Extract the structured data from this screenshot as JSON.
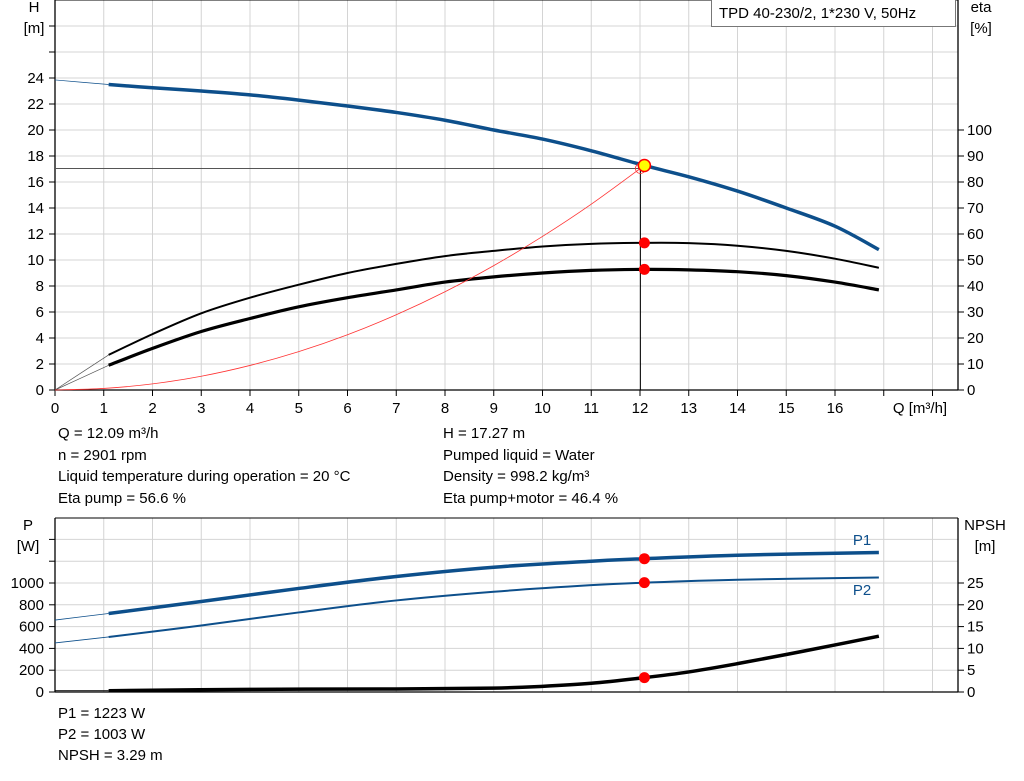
{
  "title": "TPD 40-230/2, 1*230 V, 50Hz",
  "colors": {
    "head": "#0d4f8b",
    "power": "#0d4f8b",
    "eta": "#000000",
    "system": "#ff3333",
    "point": "#ff0000",
    "duty_point": "#ffff00",
    "grid": "#d4d4d4"
  },
  "info_left": [
    "Q = 12.09 m³/h",
    "n = 2901 rpm",
    "Liquid temperature during operation = 20 °C",
    "Eta pump = 56.6 %"
  ],
  "info_right": [
    "H = 17.27 m",
    "Pumped liquid = Water",
    "Density = 998.2 kg/m³",
    "Eta pump+motor = 46.4 %"
  ],
  "info_bottom": [
    "P1 = 1223 W",
    "P2 = 1003 W",
    "NPSH = 3.29 m"
  ],
  "chart_data": [
    {
      "type": "line",
      "xlabel": "Q [m³/h]",
      "ylabel_left": {
        "name": "H",
        "unit": "[m]"
      },
      "ylabel_right": {
        "name": "eta",
        "unit": "[%]"
      },
      "xlim": [
        0,
        18.5
      ],
      "ylim_left": [
        0,
        30
      ],
      "ylim_right": [
        0,
        115.4
      ],
      "x_ticks": [
        0,
        1,
        2,
        3,
        4,
        5,
        6,
        7,
        8,
        9,
        10,
        11,
        12,
        13,
        14,
        15,
        16
      ],
      "y_left_ticks": [
        0,
        2,
        4,
        6,
        8,
        10,
        12,
        14,
        16,
        18,
        20,
        22,
        24
      ],
      "y_right_ticks": [
        0,
        10,
        20,
        30,
        40,
        50,
        60,
        70,
        80,
        90,
        100
      ],
      "grid": true,
      "duty_point": {
        "Q": 12.09,
        "H": 17.27,
        "eta_pump": 56.6,
        "eta_pump_motor": 46.4
      },
      "series": [
        {
          "key": "H",
          "axis": "left",
          "x": [
            1.1,
            2,
            3,
            4,
            5,
            6,
            7,
            8,
            9,
            10,
            11,
            12.09,
            13,
            14,
            15,
            16,
            16.9
          ],
          "y": [
            23.5,
            23.25,
            23.0,
            22.7,
            22.3,
            21.85,
            21.35,
            20.75,
            20.0,
            19.3,
            18.4,
            17.27,
            16.4,
            15.3,
            14.0,
            12.6,
            10.8
          ],
          "extrapolation": {
            "x": [
              0,
              1.1
            ],
            "y": [
              23.85,
              23.5
            ]
          }
        },
        {
          "key": "eta_pump",
          "axis": "right",
          "x": [
            1.1,
            2,
            3,
            4,
            5,
            6,
            7,
            8,
            9,
            10,
            11,
            12.09,
            13,
            14,
            15,
            16,
            16.9
          ],
          "y": [
            13.5,
            21.5,
            29.5,
            35.5,
            40.5,
            45,
            48.5,
            51.5,
            53.5,
            55.2,
            56.2,
            56.6,
            56.5,
            55.5,
            53.5,
            50.5,
            47
          ],
          "extrapolation": {
            "x": [
              0,
              1.1
            ],
            "y": [
              0,
              13.5
            ]
          }
        },
        {
          "key": "eta_pump_motor",
          "axis": "right",
          "x": [
            1.1,
            2,
            3,
            4,
            5,
            6,
            7,
            8,
            9,
            10,
            11,
            12.09,
            13,
            14,
            15,
            16,
            16.9
          ],
          "y": [
            9.5,
            16,
            22.5,
            27.5,
            32,
            35.5,
            38.5,
            41.5,
            43.5,
            45,
            46,
            46.4,
            46.2,
            45.5,
            44,
            41.5,
            38.5
          ],
          "extrapolation": {
            "x": [
              0,
              1.1
            ],
            "y": [
              0,
              9.5
            ]
          }
        },
        {
          "key": "system",
          "axis": "left",
          "x": [
            0,
            1,
            2,
            3,
            4,
            5,
            6,
            7,
            8,
            9,
            10,
            11,
            12.09
          ],
          "y": [
            0,
            0.12,
            0.47,
            1.06,
            1.89,
            2.95,
            4.25,
            5.79,
            7.56,
            9.57,
            11.81,
            14.29,
            17.27
          ]
        }
      ]
    },
    {
      "type": "line",
      "ylabel_left": {
        "name": "P",
        "unit": "[W]"
      },
      "ylabel_right": {
        "name": "NPSH",
        "unit": "[m]"
      },
      "xlim": [
        0,
        18.5
      ],
      "ylim_left": [
        0,
        1600
      ],
      "ylim_right": [
        0,
        40
      ],
      "y_left_ticks": [
        0,
        200,
        400,
        600,
        800,
        1000
      ],
      "y_right_ticks": [
        0,
        5,
        10,
        15,
        20,
        25
      ],
      "grid": true,
      "series": [
        {
          "key": "P1",
          "name": "P1",
          "axis": "left",
          "x": [
            1.1,
            3,
            5,
            7,
            9,
            11,
            12.09,
            14,
            16.9
          ],
          "y": [
            720,
            830,
            950,
            1060,
            1145,
            1200,
            1223,
            1255,
            1280
          ],
          "extrapolation": {
            "x": [
              0,
              1.1
            ],
            "y": [
              660,
              720
            ]
          }
        },
        {
          "key": "P2",
          "name": "P2",
          "axis": "left",
          "x": [
            1.1,
            3,
            5,
            7,
            9,
            11,
            12.09,
            14,
            16.9
          ],
          "y": [
            505,
            610,
            730,
            840,
            920,
            980,
            1003,
            1030,
            1050
          ],
          "extrapolation": {
            "x": [
              0,
              1.1
            ],
            "y": [
              450,
              505
            ]
          }
        },
        {
          "key": "NPSH",
          "axis": "right",
          "x": [
            1.1,
            4,
            7,
            9,
            10,
            11,
            12.09,
            13,
            14,
            15,
            16,
            16.9
          ],
          "y": [
            0.3,
            0.6,
            0.7,
            0.9,
            1.3,
            2.0,
            3.29,
            4.6,
            6.5,
            8.6,
            10.8,
            12.8
          ],
          "extrapolation": {
            "x": [
              0,
              1.1
            ],
            "y": [
              0.3,
              0.3
            ]
          }
        }
      ],
      "points": {
        "Q": 12.09,
        "P1": 1223,
        "P2": 1003,
        "NPSH": 3.29
      }
    }
  ]
}
